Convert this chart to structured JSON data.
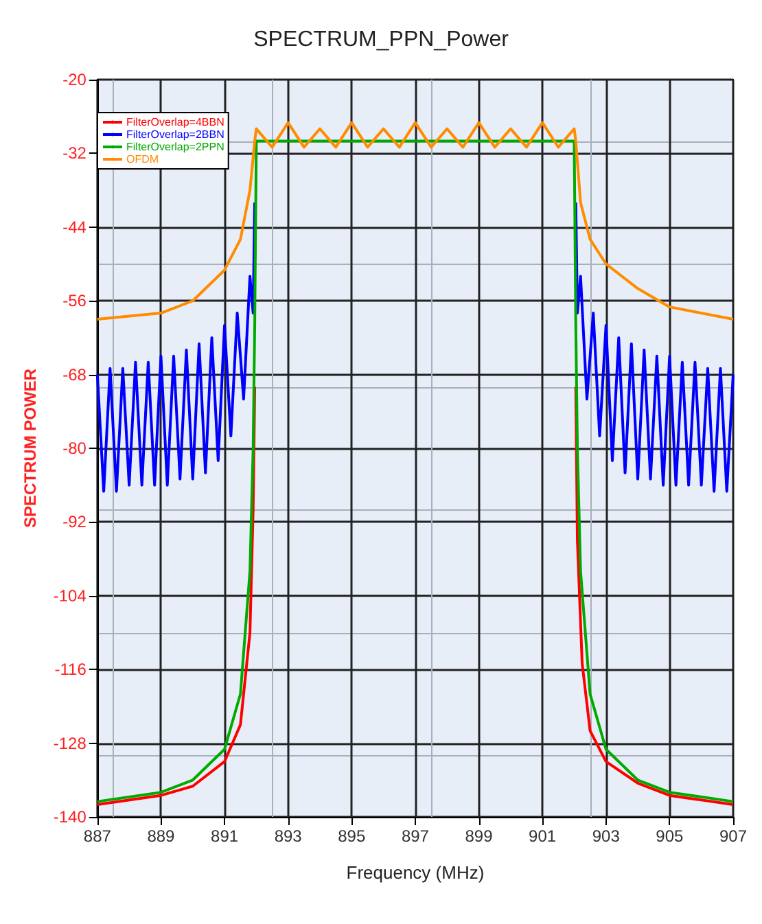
{
  "chart_data": {
    "type": "line",
    "title": "SPECTRUM_PPN_Power",
    "xlabel": "Frequency (MHz)",
    "ylabel": "SPECTRUM POWER",
    "xlim": [
      887,
      907
    ],
    "xticks": [
      887,
      889,
      891,
      893,
      895,
      897,
      899,
      901,
      903,
      905,
      907
    ],
    "ylim": [
      -140,
      -20
    ],
    "yticks": [
      -140,
      -128,
      -116,
      -104,
      -92,
      -80,
      -68,
      -56,
      -44,
      -32,
      -20
    ],
    "grid": true,
    "legend": "top left",
    "marker": "none",
    "line_style": "solid",
    "series": [
      {
        "name": "FilterOverlap=4BBN",
        "color": "#ff0000",
        "x": [
          887,
          889,
          890,
          891,
          891.5,
          891.8,
          891.9,
          891.95,
          892,
          897,
          902,
          902.05,
          902.1,
          902.25,
          902.5,
          903,
          904,
          905,
          907
        ],
        "values": [
          -138,
          -136.5,
          -135,
          -131,
          -125,
          -110,
          -90,
          -70,
          null,
          null,
          null,
          -70,
          -95,
          -115,
          -126,
          -131,
          -134.5,
          -136.5,
          -138
        ]
      },
      {
        "name": "FilterOverlap=2BBN",
        "color": "#0000ff",
        "x": [
          887,
          887.2,
          887.4,
          887.6,
          887.8,
          888,
          888.2,
          888.4,
          888.6,
          888.8,
          889,
          889.2,
          889.4,
          889.6,
          889.8,
          890,
          890.2,
          890.4,
          890.6,
          890.8,
          891,
          891.2,
          891.4,
          891.6,
          891.8,
          891.9,
          891.95,
          892,
          897,
          902,
          902.05,
          902.1,
          902.2,
          902.4,
          902.6,
          902.8,
          903,
          903.2,
          903.4,
          903.6,
          903.8,
          904,
          904.2,
          904.4,
          904.6,
          904.8,
          905,
          905.2,
          905.4,
          905.6,
          905.8,
          906,
          906.2,
          906.4,
          906.6,
          906.8,
          907
        ],
        "values": [
          -68,
          -87,
          -67,
          -87,
          -67,
          -86,
          -66,
          -86,
          -66,
          -86,
          -65,
          -86,
          -65,
          -85,
          -64,
          -85,
          -63,
          -84,
          -62,
          -82,
          -60,
          -78,
          -58,
          -72,
          -52,
          -58,
          -40,
          null,
          null,
          null,
          -40,
          -58,
          -52,
          -72,
          -58,
          -78,
          -60,
          -82,
          -62,
          -84,
          -63,
          -85,
          -64,
          -85,
          -65,
          -86,
          -65,
          -86,
          -66,
          -86,
          -66,
          -86,
          -67,
          -87,
          -67,
          -87,
          -68
        ]
      },
      {
        "name": "FilterOverlap=2PPN",
        "color": "#00aa00",
        "x": [
          887,
          889,
          890,
          891,
          891.5,
          891.8,
          891.9,
          891.95,
          892,
          897,
          902,
          902.05,
          902.1,
          902.2,
          902.5,
          903,
          904,
          905,
          907
        ],
        "values": [
          -137.5,
          -136,
          -134,
          -129,
          -120,
          -100,
          -80,
          -60,
          -30,
          -30,
          -30,
          -60,
          -80,
          -100,
          -120,
          -129,
          -134,
          -136,
          -137.5
        ]
      },
      {
        "name": "OFDM",
        "color": "#ff8c00",
        "x": [
          887,
          889,
          890,
          891,
          891.5,
          891.8,
          891.95,
          892,
          892.5,
          893,
          893.5,
          894,
          894.5,
          895,
          895.5,
          896,
          896.5,
          897,
          897.5,
          898,
          898.5,
          899,
          899.5,
          900,
          900.5,
          901,
          901.5,
          902,
          902.05,
          902.2,
          902.5,
          903,
          904,
          905,
          907
        ],
        "values": [
          -59,
          -58,
          -56,
          -51,
          -46,
          -38,
          -30,
          -28,
          -31,
          -27,
          -31,
          -28,
          -31,
          -27,
          -31,
          -28,
          -31,
          -27,
          -31,
          -28,
          -31,
          -27,
          -31,
          -28,
          -31,
          -27,
          -31,
          -28,
          -30,
          -40,
          -46,
          -50,
          -54,
          -57,
          -59
        ]
      }
    ]
  }
}
